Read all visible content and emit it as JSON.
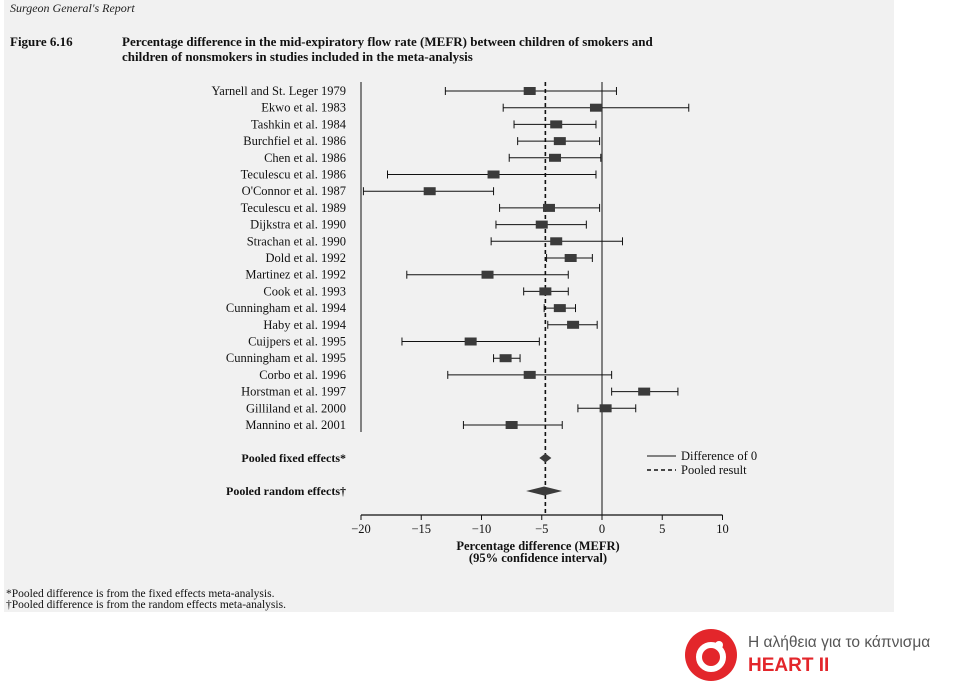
{
  "header": {
    "running_head": "Surgeon General's Report",
    "figure_label": "Figure 6.16",
    "figure_title_line1": "Percentage difference in the mid-expiratory flow rate (MEFR) between children of smokers and",
    "figure_title_line2": "children of nonsmokers in studies included in the meta-analysis"
  },
  "chart_data": {
    "type": "forest",
    "studies": [
      {
        "label": "Yarnell and St. Leger 1979",
        "estimate": -6.0,
        "ci": [
          -13.0,
          1.2
        ]
      },
      {
        "label": "Ekwo et al. 1983",
        "estimate": -0.5,
        "ci": [
          -8.2,
          7.2
        ]
      },
      {
        "label": "Tashkin et al. 1984",
        "estimate": -3.8,
        "ci": [
          -7.3,
          -0.5
        ]
      },
      {
        "label": "Burchfiel et al. 1986",
        "estimate": -3.5,
        "ci": [
          -7.0,
          -0.2
        ]
      },
      {
        "label": "Chen et al. 1986",
        "estimate": -3.9,
        "ci": [
          -7.7,
          -0.1
        ]
      },
      {
        "label": "Teculescu et al. 1986",
        "estimate": -9.0,
        "ci": [
          -17.8,
          -0.5
        ]
      },
      {
        "label": "O'Connor et al. 1987",
        "estimate": -14.3,
        "ci": [
          -19.8,
          -9.0
        ]
      },
      {
        "label": "Teculescu et al. 1989",
        "estimate": -4.4,
        "ci": [
          -8.5,
          -0.2
        ]
      },
      {
        "label": "Dijkstra et al. 1990",
        "estimate": -5.0,
        "ci": [
          -8.8,
          -1.3
        ]
      },
      {
        "label": "Strachan et al. 1990",
        "estimate": -3.8,
        "ci": [
          -9.2,
          1.7
        ]
      },
      {
        "label": "Dold et al. 1992",
        "estimate": -2.6,
        "ci": [
          -4.6,
          -0.8
        ]
      },
      {
        "label": "Martinez et al. 1992",
        "estimate": -9.5,
        "ci": [
          -16.2,
          -2.8
        ]
      },
      {
        "label": "Cook et al. 1993",
        "estimate": -4.7,
        "ci": [
          -6.5,
          -2.8
        ]
      },
      {
        "label": "Cunningham et al. 1994",
        "estimate": -3.5,
        "ci": [
          -4.8,
          -2.2
        ]
      },
      {
        "label": "Haby et al. 1994",
        "estimate": -2.4,
        "ci": [
          -4.5,
          -0.4
        ]
      },
      {
        "label": "Cuijpers et al. 1995",
        "estimate": -10.9,
        "ci": [
          -16.6,
          -5.2
        ]
      },
      {
        "label": "Cunningham et al. 1995",
        "estimate": -8.0,
        "ci": [
          -9.0,
          -6.8
        ]
      },
      {
        "label": "Corbo et al. 1996",
        "estimate": -6.0,
        "ci": [
          -12.8,
          0.8
        ]
      },
      {
        "label": "Horstman et al. 1997",
        "estimate": 3.5,
        "ci": [
          0.8,
          6.3
        ]
      },
      {
        "label": "Gilliland et al. 2000",
        "estimate": 0.3,
        "ci": [
          -2.0,
          2.8
        ]
      },
      {
        "label": "Mannino et al. 2001",
        "estimate": -7.5,
        "ci": [
          -11.5,
          -3.3
        ]
      }
    ],
    "pooled": [
      {
        "label": "Pooled fixed effects*",
        "estimate": -4.7,
        "ci": [
          -5.2,
          -4.2
        ]
      },
      {
        "label": "Pooled random effects†",
        "estimate": -4.8,
        "ci": [
          -6.3,
          -3.3
        ]
      }
    ],
    "reference_line": 0,
    "pooled_line": -4.7,
    "xlim": [
      -20,
      10
    ],
    "xticks": [
      "-20",
      "-15",
      "-10",
      "-5",
      "0",
      "5",
      "10"
    ],
    "xlabel": "Percentage difference (MEFR)",
    "xlabel_line2": "(95% confidence interval)",
    "legend": [
      {
        "label": "Difference of 0",
        "style": "solid"
      },
      {
        "label": "Pooled result",
        "style": "dashed"
      }
    ],
    "legend_position": "top-right of lower panel"
  },
  "footnotes": [
    "*Pooled difference is from the fixed effects meta-analysis.",
    "†Pooled difference is from the random effects meta-analysis."
  ],
  "branding": {
    "tagline": "Η αλήθεια για το κάπνισμα",
    "name": "HEART II",
    "brand_color": "#e3262b"
  },
  "colors": {
    "ink": "#111111",
    "marker": "#3b3b3b",
    "paper": "#f1f1f1"
  }
}
